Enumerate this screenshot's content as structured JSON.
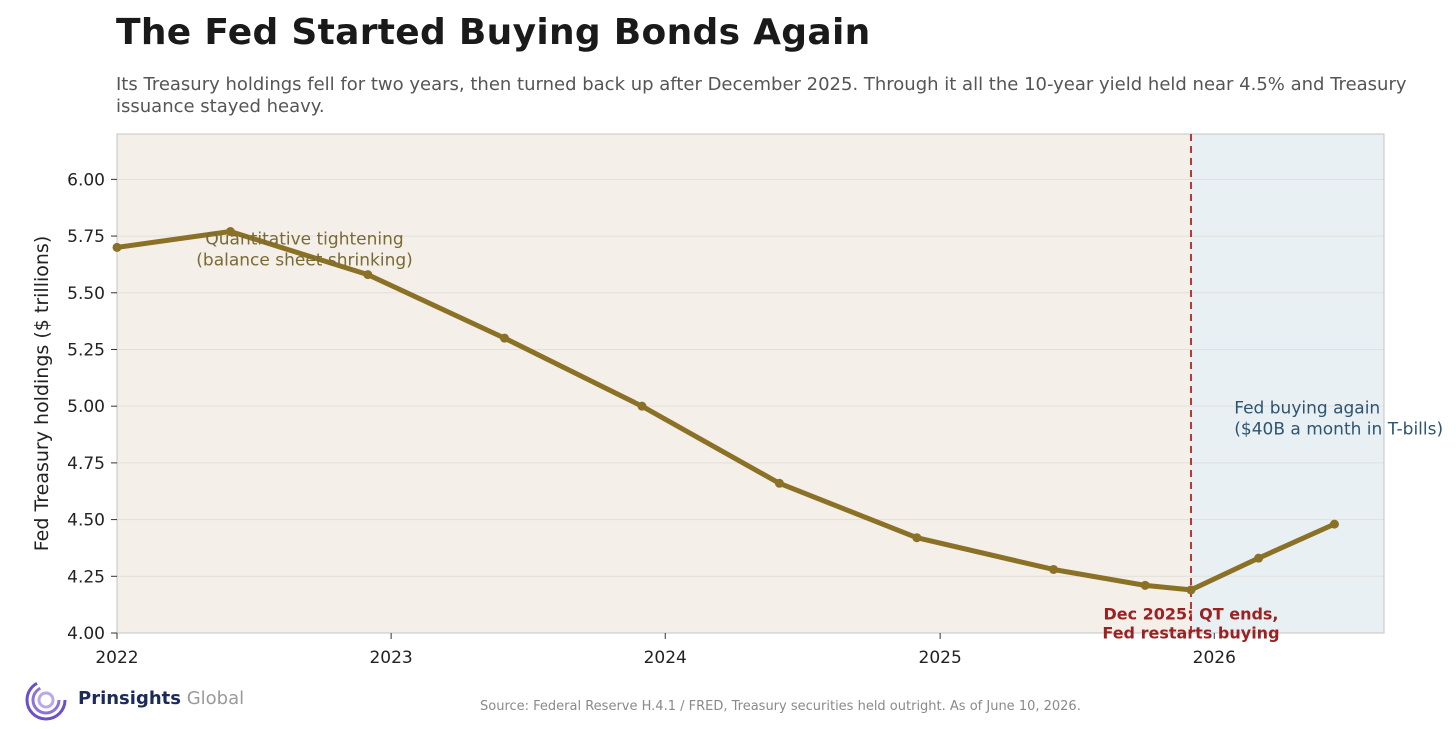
{
  "title": "The Fed Started Buying Bonds Again",
  "subtitle": "Its Treasury holdings fell for two years, then turned back up after December 2025. Through it all the 10-year yield held near 4.5% and Treasury issuance stayed heavy.",
  "source": "Source: Federal Reserve H.4.1 / FRED, Treasury securities held outright. As of June 10, 2026.",
  "logo": {
    "brand": "Prinsights",
    "brand_sub": " Global",
    "icon": "concentric-rings-icon"
  },
  "colors": {
    "line": "#8a7126",
    "qt_region": "#f4efe8",
    "buying_region": "#e8f0f4",
    "marker": "#b03a3a",
    "qt_label": "#7a6a35",
    "buying_label": "#2e5470",
    "marker_label": "#9b2222"
  },
  "chart_data": {
    "type": "line",
    "title": "The Fed Started Buying Bonds Again",
    "xlabel": "",
    "ylabel": "Fed Treasury holdings ($ trillions)",
    "xlim": [
      "2022-01-01",
      "2026-08-15"
    ],
    "ylim": [
      4.0,
      6.2
    ],
    "x_ticks": [
      "2022",
      "2023",
      "2024",
      "2025",
      "2026"
    ],
    "y_ticks": [
      "4.00",
      "4.25",
      "4.50",
      "4.75",
      "5.00",
      "5.25",
      "5.50",
      "5.75",
      "6.00"
    ],
    "grid": true,
    "series": [
      {
        "name": "",
        "x": [
          "2022-01-01",
          "2022-06-01",
          "2022-12-01",
          "2023-06-01",
          "2023-12-01",
          "2024-06-01",
          "2024-12-01",
          "2025-06-01",
          "2025-10-01",
          "2025-12-01",
          "2026-03-01",
          "2026-06-10"
        ],
        "y": [
          5.7,
          5.77,
          5.58,
          5.3,
          5.0,
          4.66,
          4.42,
          4.28,
          4.21,
          4.19,
          4.33,
          4.48
        ]
      }
    ],
    "regions": [
      {
        "name": "qt",
        "start": "2022-01-01",
        "end": "2025-12-01",
        "label": [
          "Quantitative tightening",
          "(balance sheet shrinking)"
        ],
        "label_x": "2023-06-01",
        "label_y": 5.7
      },
      {
        "name": "buying",
        "start": "2025-12-01",
        "end": "2026-08-15",
        "label": [
          "Fed buying again",
          "($40B a month in T-bills)"
        ],
        "label_x": "2026-01-01",
        "label_y": 4.95
      }
    ],
    "vline": {
      "x": "2025-12-01",
      "label": [
        "Dec 2025: QT ends,",
        "Fed restarts buying"
      ],
      "label_y": 4.05
    }
  }
}
